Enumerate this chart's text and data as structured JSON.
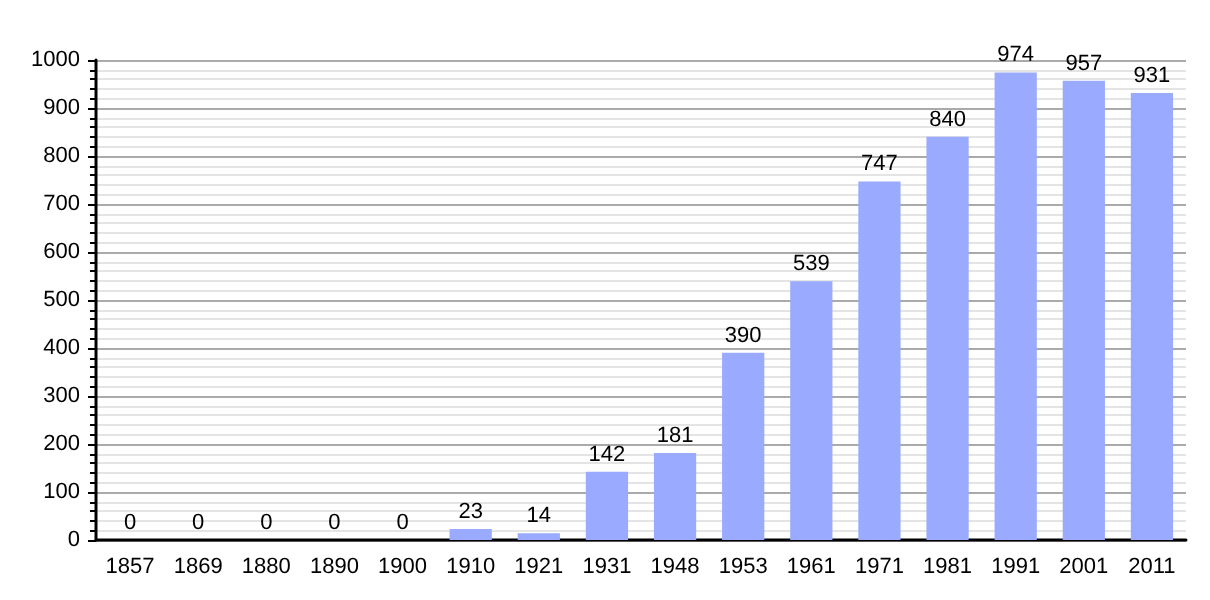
{
  "chart_data": {
    "type": "bar",
    "categories": [
      "1857",
      "1869",
      "1880",
      "1890",
      "1900",
      "1910",
      "1921",
      "1931",
      "1948",
      "1953",
      "1961",
      "1971",
      "1981",
      "1991",
      "2001",
      "2011"
    ],
    "values": [
      0,
      0,
      0,
      0,
      0,
      23,
      14,
      142,
      181,
      390,
      539,
      747,
      840,
      974,
      957,
      931
    ],
    "color": "#99aaff",
    "ylim": [
      0,
      1000
    ],
    "yticks": [
      0,
      100,
      200,
      300,
      400,
      500,
      600,
      700,
      800,
      900,
      1000
    ],
    "grid": "y",
    "data_labels": true
  }
}
